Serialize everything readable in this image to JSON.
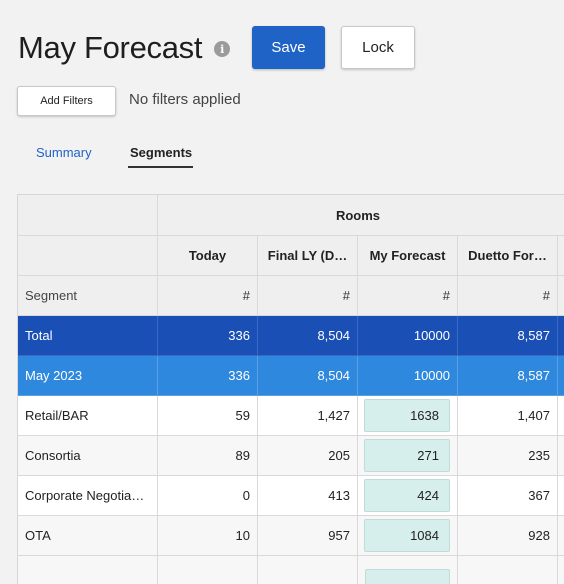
{
  "page": {
    "title": "May Forecast",
    "info_icon": "i",
    "save_label": "Save",
    "lock_label": "Lock"
  },
  "filters": {
    "button_label": "Add Filters",
    "status": "No filters applied"
  },
  "tabs": [
    {
      "label": "Summary",
      "active": false
    },
    {
      "label": "Segments",
      "active": true
    }
  ],
  "grid": {
    "group_header": "Rooms",
    "columns": [
      "Today",
      "Final LY (D…",
      "My Forecast",
      "Duetto For…"
    ],
    "units": [
      "#",
      "#",
      "#",
      "#"
    ],
    "segment_header": "Segment",
    "rows": [
      {
        "type": "total",
        "segment": "Total",
        "values": [
          "336",
          "8,504",
          "10000",
          "8,587"
        ]
      },
      {
        "type": "month",
        "segment": "May 2023",
        "values": [
          "336",
          "8,504",
          "10000",
          "8,587"
        ]
      },
      {
        "type": "data",
        "segment": "Retail/BAR",
        "values": [
          "59",
          "1,427",
          "1638",
          "1,407"
        ]
      },
      {
        "type": "data",
        "segment": "Consortia",
        "values": [
          "89",
          "205",
          "271",
          "235"
        ]
      },
      {
        "type": "data",
        "segment": "Corporate Negotia…",
        "values": [
          "0",
          "413",
          "424",
          "367"
        ]
      },
      {
        "type": "data",
        "segment": "OTA",
        "values": [
          "10",
          "957",
          "1084",
          "928"
        ]
      }
    ]
  },
  "colors": {
    "primary": "#1f63c6",
    "total_row": "#1a4fb6",
    "month_row": "#2e88dd",
    "forecast_pill": "#d6efec"
  }
}
